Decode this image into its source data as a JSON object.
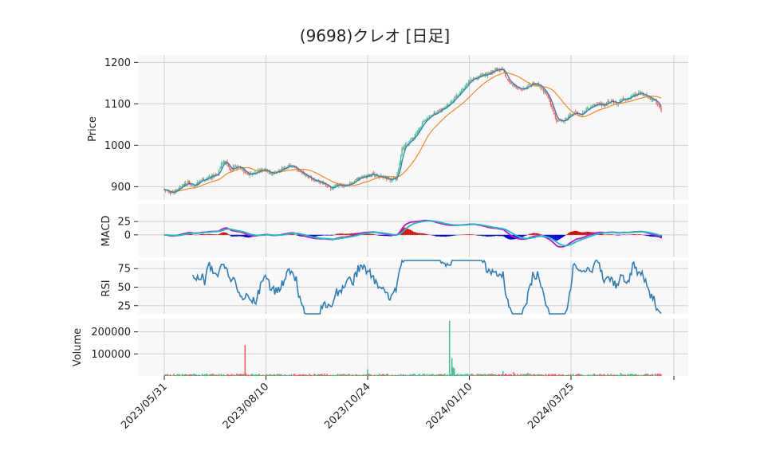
{
  "chart_data": {
    "type": "candlestick",
    "title": "(9698)クレオ  [日足]",
    "x_tick_labels": [
      "2023/05/31",
      "2023/08/10",
      "2023/10/24",
      "2024/01/10",
      "2024/03/25"
    ],
    "panels": {
      "price": {
        "ylabel": "Price",
        "ylim": [
          868,
          1218
        ],
        "yticks": [
          900,
          1000,
          1100,
          1200
        ],
        "tick_labels": [
          "900",
          "1000",
          "1100",
          "1200"
        ],
        "close_anchors": [
          [
            0,
            892
          ],
          [
            6,
            886
          ],
          [
            10,
            890
          ],
          [
            15,
            902
          ],
          [
            20,
            910
          ],
          [
            25,
            905
          ],
          [
            30,
            912
          ],
          [
            35,
            920
          ],
          [
            40,
            925
          ],
          [
            45,
            930
          ],
          [
            48,
            955
          ],
          [
            52,
            962
          ],
          [
            55,
            940
          ],
          [
            60,
            948
          ],
          [
            65,
            945
          ],
          [
            70,
            928
          ],
          [
            75,
            932
          ],
          [
            80,
            938
          ],
          [
            85,
            940
          ],
          [
            90,
            932
          ],
          [
            95,
            935
          ],
          [
            100,
            945
          ],
          [
            105,
            950
          ],
          [
            110,
            945
          ],
          [
            115,
            935
          ],
          [
            120,
            925
          ],
          [
            125,
            918
          ],
          [
            130,
            912
          ],
          [
            135,
            905
          ],
          [
            140,
            895
          ],
          [
            145,
            905
          ],
          [
            150,
            902
          ],
          [
            155,
            906
          ],
          [
            160,
            912
          ],
          [
            165,
            924
          ],
          [
            170,
            925
          ],
          [
            175,
            930
          ],
          [
            180,
            925
          ],
          [
            185,
            922
          ],
          [
            190,
            918
          ],
          [
            195,
            920
          ],
          [
            198,
            955
          ],
          [
            200,
            990
          ],
          [
            205,
            1005
          ],
          [
            210,
            1020
          ],
          [
            215,
            1045
          ],
          [
            220,
            1060
          ],
          [
            225,
            1075
          ],
          [
            230,
            1080
          ],
          [
            235,
            1090
          ],
          [
            240,
            1100
          ],
          [
            245,
            1115
          ],
          [
            250,
            1130
          ],
          [
            255,
            1150
          ],
          [
            260,
            1160
          ],
          [
            265,
            1165
          ],
          [
            270,
            1170
          ],
          [
            275,
            1175
          ],
          [
            280,
            1185
          ],
          [
            285,
            1180
          ],
          [
            290,
            1150
          ],
          [
            295,
            1140
          ],
          [
            300,
            1135
          ],
          [
            305,
            1140
          ],
          [
            310,
            1150
          ],
          [
            315,
            1145
          ],
          [
            320,
            1130
          ],
          [
            325,
            1100
          ],
          [
            330,
            1060
          ],
          [
            335,
            1058
          ],
          [
            340,
            1070
          ],
          [
            345,
            1080
          ],
          [
            350,
            1075
          ],
          [
            355,
            1085
          ],
          [
            360,
            1095
          ],
          [
            365,
            1100
          ],
          [
            370,
            1098
          ],
          [
            375,
            1108
          ],
          [
            380,
            1102
          ],
          [
            385,
            1110
          ],
          [
            390,
            1112
          ],
          [
            395,
            1120
          ],
          [
            400,
            1125
          ],
          [
            405,
            1120
          ],
          [
            410,
            1112
          ],
          [
            413,
            1108
          ],
          [
            416,
            1095
          ],
          [
            418,
            1082
          ]
        ],
        "ma_short": {
          "color": "#2f7fb5",
          "window": 5
        },
        "ma_long": {
          "color": "#f08a24",
          "window": 25
        },
        "up_color": "#3cc28a",
        "down_color": "#f25a5a"
      },
      "macd": {
        "ylabel": "MACD",
        "ylim": [
          -42,
          58
        ],
        "yticks": [
          0,
          25
        ],
        "tick_labels": [
          "0",
          "25"
        ],
        "macd_color": "#bf17c8",
        "signal_color": "#17c0c8",
        "hist_pos_color": "#e00000",
        "hist_neg_color": "#0000e0"
      },
      "rsi": {
        "ylabel": "RSI",
        "ylim": [
          14,
          86
        ],
        "yticks": [
          25,
          50,
          75
        ],
        "tick_labels": [
          "25",
          "50",
          "75"
        ],
        "color": "#2f7fb5"
      },
      "volume": {
        "ylabel": "Volume",
        "ylim": [
          0,
          260000
        ],
        "yticks": [
          100000,
          200000
        ],
        "tick_labels": [
          "100000",
          "200000"
        ],
        "spikes": [
          [
            68,
            140000
          ],
          [
            171,
            30000
          ],
          [
            240,
            250000
          ],
          [
            242,
            80000
          ],
          [
            243,
            40000
          ],
          [
            244,
            35000
          ],
          [
            285,
            22000
          ],
          [
            294,
            18000
          ],
          [
            306,
            15000
          ],
          [
            384,
            14000
          ]
        ],
        "base_volume": 6000
      }
    }
  }
}
